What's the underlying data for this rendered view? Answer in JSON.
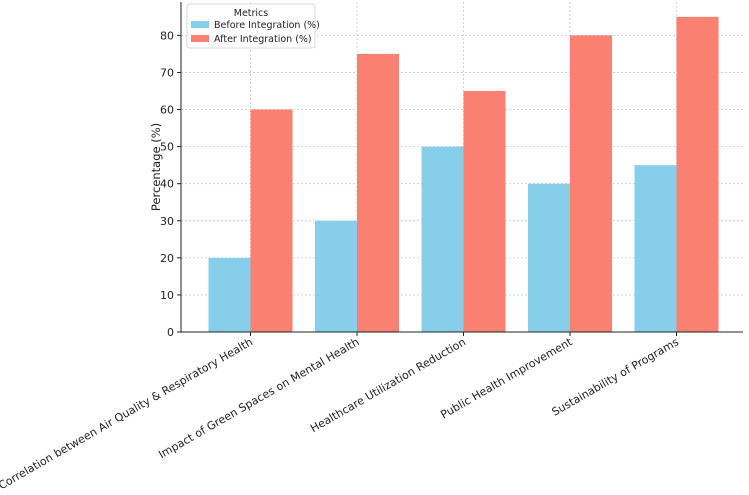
{
  "chart_data": {
    "type": "bar",
    "categories": [
      "Correlation between Air Quality & Respiratory Health",
      "Impact of Green Spaces on Mental Health",
      "Healthcare Utilization Reduction",
      "Public Health Improvement",
      "Sustainability of Programs"
    ],
    "series": [
      {
        "name": "Before Integration (%)",
        "values": [
          20,
          30,
          50,
          40,
          45
        ],
        "color": "#87ceeb"
      },
      {
        "name": "After Integration (%)",
        "values": [
          60,
          75,
          65,
          80,
          85
        ],
        "color": "#fa8072"
      }
    ],
    "title": "",
    "xlabel": "",
    "ylabel": "Percentage (%)",
    "ylim": [
      0,
      89
    ],
    "yticks": [
      0,
      10,
      20,
      30,
      40,
      50,
      60,
      70,
      80
    ],
    "grid": true,
    "legend": {
      "title": "Metrics",
      "placement": "top-left"
    }
  }
}
